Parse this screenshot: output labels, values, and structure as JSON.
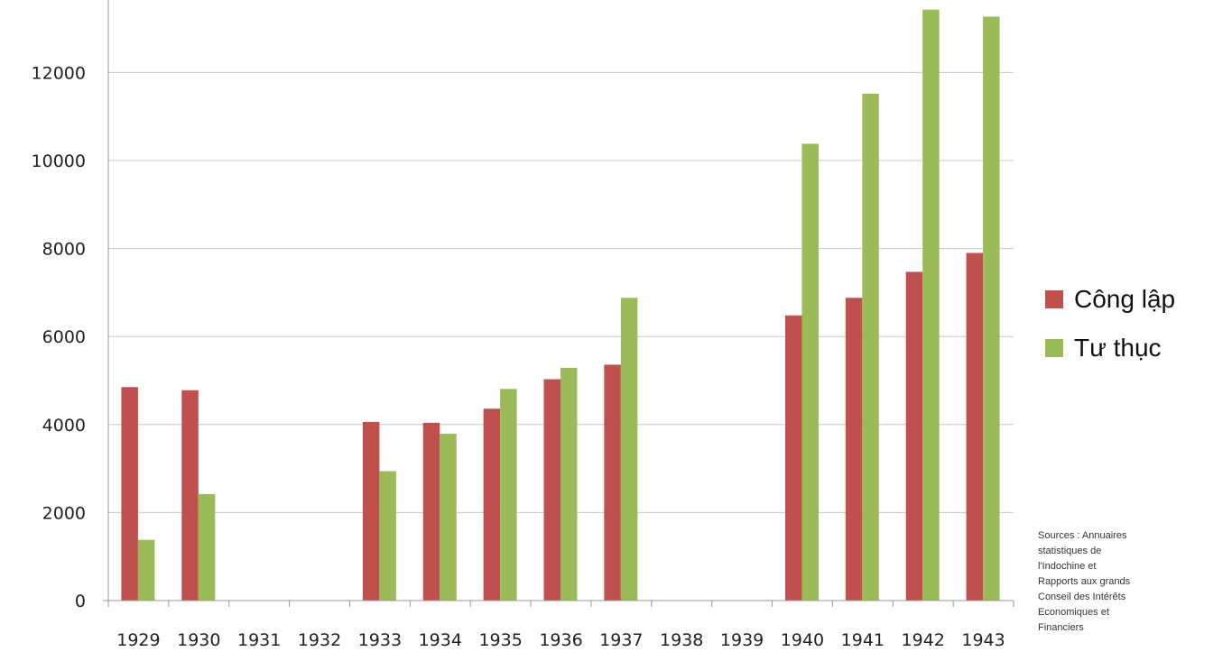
{
  "chart_data": {
    "type": "bar",
    "categories": [
      "1929",
      "1930",
      "1931",
      "1932",
      "1933",
      "1934",
      "1935",
      "1936",
      "1937",
      "1938",
      "1939",
      "1940",
      "1941",
      "1942",
      "1943"
    ],
    "series": [
      {
        "name": "Công lập",
        "color": "#c0504d",
        "values": [
          4850,
          4780,
          null,
          null,
          4060,
          4040,
          4360,
          5030,
          5360,
          null,
          null,
          6480,
          6880,
          7470,
          7900
        ]
      },
      {
        "name": "Tư thục",
        "color": "#9bbb59",
        "values": [
          1380,
          2420,
          null,
          null,
          2940,
          3790,
          4810,
          5290,
          6880,
          null,
          null,
          10380,
          11520,
          13430,
          13270
        ]
      }
    ],
    "yticks": [
      "0",
      "2000",
      "4000",
      "6000",
      "8000",
      "10000",
      "12000"
    ],
    "ylim": [
      0,
      14000
    ],
    "grid": true,
    "legend_position": "right",
    "title": "",
    "xlabel": "",
    "ylabel": ""
  },
  "sources": {
    "lines": [
      "Sources : Annuaires",
      "statistiques de",
      "l'Indochine et",
      "Rapports aux grands",
      "Conseil des Intérêts",
      "Economiques et",
      "Financiers"
    ]
  }
}
